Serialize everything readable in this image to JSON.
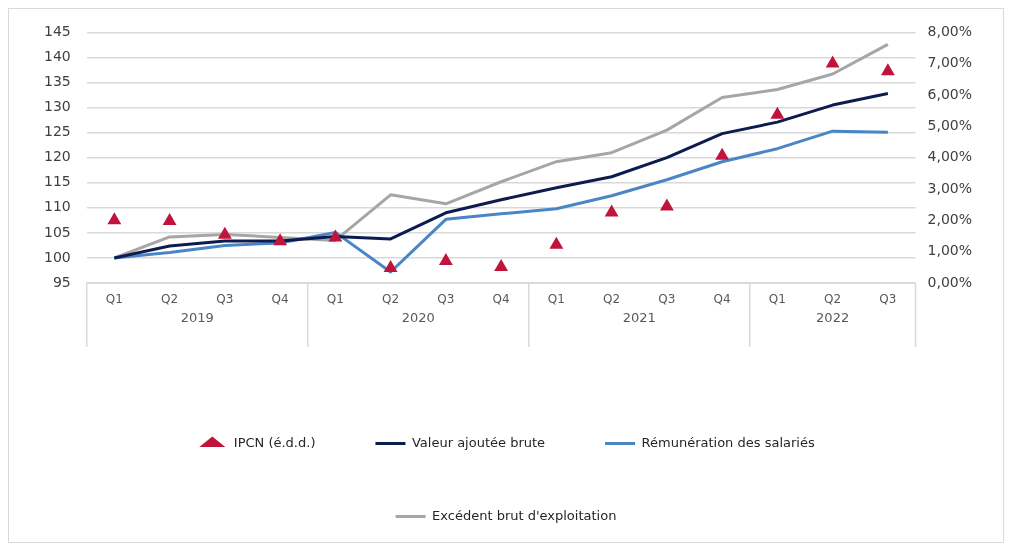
{
  "chart_data": {
    "type": "line",
    "categories": [
      "Q1",
      "Q2",
      "Q3",
      "Q4",
      "Q1",
      "Q2",
      "Q3",
      "Q4",
      "Q1",
      "Q2",
      "Q3",
      "Q4",
      "Q1",
      "Q2",
      "Q3"
    ],
    "annotations": [
      "2019",
      "2020",
      "2021",
      "2022"
    ],
    "series": [
      {
        "name": "Valeur ajoutée brute",
        "color": "#0c1c4f",
        "marker": "none",
        "values": [
          100,
          102.4,
          103.4,
          103.4,
          104.3,
          103.8,
          109,
          111.6,
          114,
          116.2,
          120,
          124.8,
          127.1,
          130.5,
          132.8
        ]
      },
      {
        "name": "Rémunération des salariés",
        "color": "#4a86c5",
        "marker": "none",
        "values": [
          100,
          101.1,
          102.5,
          103,
          105.1,
          97.2,
          107.7,
          108.8,
          109.8,
          112.4,
          115.6,
          119.2,
          121.8,
          125.3,
          125.1
        ]
      },
      {
        "name": "Excédent brut d'exploitation",
        "color": "#a6a6a6",
        "marker": "none",
        "values": [
          100,
          104.2,
          104.7,
          104.1,
          103.5,
          112.6,
          110.8,
          115.2,
          119.2,
          121,
          125.5,
          132,
          133.6,
          136.7,
          142.6
        ]
      },
      {
        "name": "IPCN (é.d.d.)",
        "type": "scatter",
        "axis": "y2",
        "color": "#c0143c",
        "marker": "triangle",
        "values": [
          2,
          1.98,
          1.54,
          1.33,
          1.45,
          0.48,
          0.7,
          0.51,
          1.22,
          2.25,
          2.44,
          4.06,
          5.37,
          7.01,
          6.76
        ]
      }
    ],
    "ylim": [
      95,
      145
    ],
    "yticks": [
      95,
      100,
      105,
      110,
      115,
      120,
      125,
      130,
      135,
      140,
      145
    ],
    "y2lim": [
      0,
      8
    ],
    "y2ticks": [
      {
        "value": 0,
        "label": "0,00%"
      },
      {
        "value": 1,
        "label": "1,00%"
      },
      {
        "value": 2,
        "label": "2,00%"
      },
      {
        "value": 3,
        "label": "3,00%"
      },
      {
        "value": 4,
        "label": "4,00%"
      },
      {
        "value": 5,
        "label": "5,00%"
      },
      {
        "value": 6,
        "label": "6,00%"
      },
      {
        "value": 7,
        "label": "7,00%"
      },
      {
        "value": 8,
        "label": "8,00%"
      }
    ],
    "grid": "y",
    "legend": "bottom",
    "line_style": "solid"
  }
}
